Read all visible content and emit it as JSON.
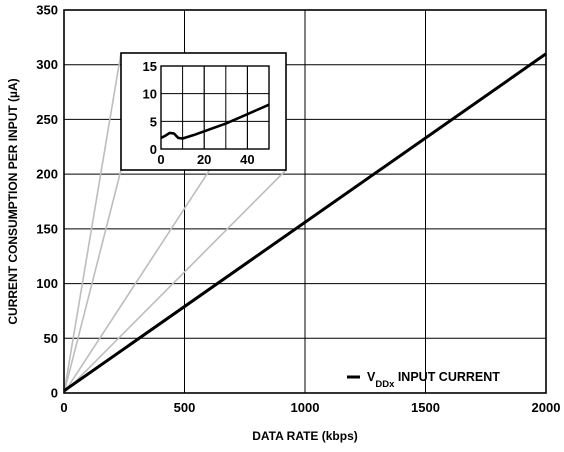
{
  "chart_data": [
    {
      "type": "line",
      "xlabel": "DATA RATE (kbps)",
      "ylabel": "CURRENT CONSUMPTION PER INPUT (µA)",
      "xlim": [
        0,
        2000
      ],
      "ylim": [
        0,
        350
      ],
      "xticks": [
        "0",
        "500",
        "1000",
        "1500",
        "2000"
      ],
      "yticks": [
        "0",
        "50",
        "100",
        "150",
        "200",
        "250",
        "300",
        "350"
      ],
      "grid": true,
      "legend_position": "bottom-right",
      "legend": {
        "prefix": "V",
        "subscript": "DDx",
        "suffix": " INPUT CURRENT"
      },
      "series": [
        {
          "name": "VDDx INPUT CURRENT",
          "x": [
            0,
            2000
          ],
          "y": [
            2,
            310
          ]
        }
      ]
    },
    {
      "type": "line",
      "role": "inset",
      "xlim": [
        0,
        50
      ],
      "ylim": [
        0,
        15
      ],
      "xticks": [
        "0",
        "20",
        "40"
      ],
      "yticks": [
        "0",
        "5",
        "10",
        "15"
      ],
      "grid": true,
      "series": [
        {
          "name": "VDDx INPUT CURRENT",
          "x": [
            0,
            2,
            4,
            6,
            8,
            10,
            15,
            20,
            30,
            40,
            50
          ],
          "y": [
            2.0,
            2.4,
            2.9,
            2.8,
            2.0,
            1.9,
            2.5,
            3.2,
            4.6,
            6.3,
            8.0
          ]
        }
      ]
    }
  ]
}
